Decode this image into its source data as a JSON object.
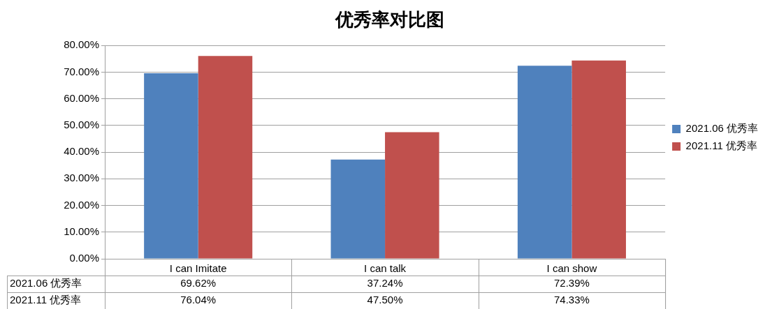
{
  "chart_data": {
    "type": "bar",
    "title": "优秀率对比图",
    "categories": [
      "I can Imitate",
      "I can talk",
      "I can show"
    ],
    "series": [
      {
        "name": "2021.06 优秀率",
        "color": "#4f81bd",
        "values": [
          69.62,
          37.24,
          72.39
        ],
        "value_labels": [
          "69.62%",
          "37.24%",
          "72.39%"
        ]
      },
      {
        "name": "2021.11 优秀率",
        "color": "#c0504d",
        "values": [
          76.04,
          47.5,
          74.33
        ],
        "value_labels": [
          "76.04%",
          "47.50%",
          "74.33%"
        ]
      }
    ],
    "ylim": [
      0,
      80
    ],
    "yticks": [
      {
        "value": 0,
        "label": "0.00%"
      },
      {
        "value": 10,
        "label": "10.00%"
      },
      {
        "value": 20,
        "label": "20.00%"
      },
      {
        "value": 30,
        "label": "30.00%"
      },
      {
        "value": 40,
        "label": "40.00%"
      },
      {
        "value": 50,
        "label": "50.00%"
      },
      {
        "value": 60,
        "label": "60.00%"
      },
      {
        "value": 70,
        "label": "70.00%"
      },
      {
        "value": 80,
        "label": "80.00%"
      }
    ],
    "grid": "y",
    "legend": "right"
  }
}
